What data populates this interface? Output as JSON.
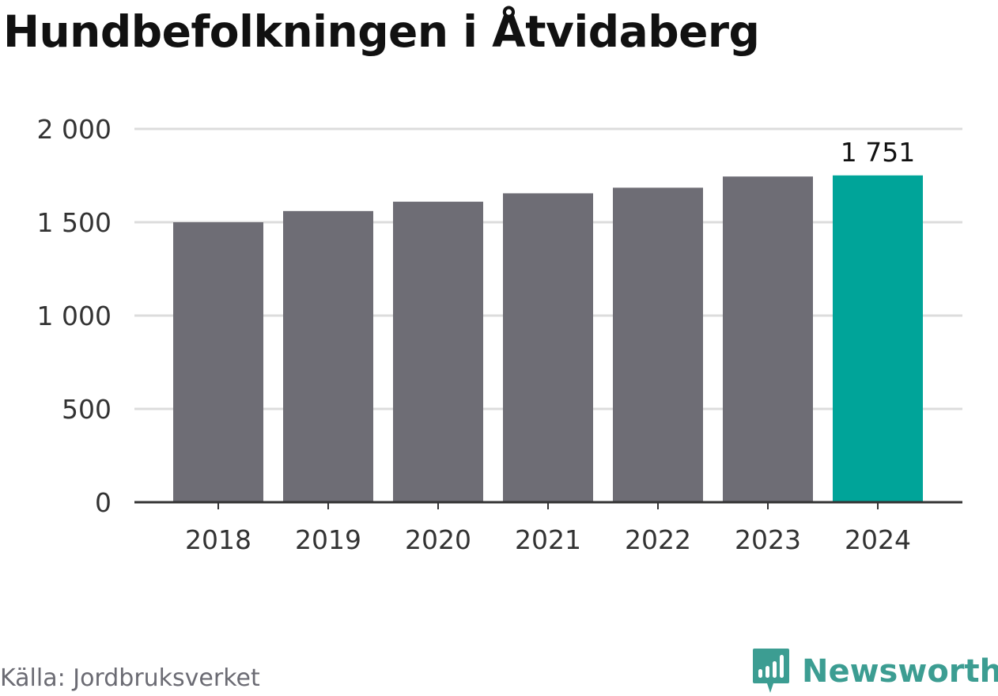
{
  "title": "Hundbefolkningen i Åtvidaberg",
  "source": "Källa: Jordbruksverket",
  "brand": {
    "name": "Newsworthy",
    "icon": "newsworthy-logo-icon"
  },
  "colors": {
    "bar": "#6e6d75",
    "highlight": "#00a499",
    "grid": "#dcdcdc",
    "axis": "#333333",
    "text": "#333333",
    "brand": "#3c9d92"
  },
  "chart_data": {
    "type": "bar",
    "categories": [
      "2018",
      "2019",
      "2020",
      "2021",
      "2022",
      "2023",
      "2024"
    ],
    "values": [
      1500,
      1560,
      1610,
      1655,
      1685,
      1745,
      1751
    ],
    "highlight_index": 6,
    "data_labels": [
      {
        "index": 6,
        "text": "1 751"
      }
    ],
    "ylim": [
      0,
      2000
    ],
    "yticks": [
      0,
      500,
      1000,
      1500,
      2000
    ],
    "ytick_labels": [
      "0",
      "500",
      "1 000",
      "1 500",
      "2 000"
    ],
    "grid": true,
    "title": "Hundbefolkningen i Åtvidaberg",
    "xlabel": "",
    "ylabel": ""
  }
}
